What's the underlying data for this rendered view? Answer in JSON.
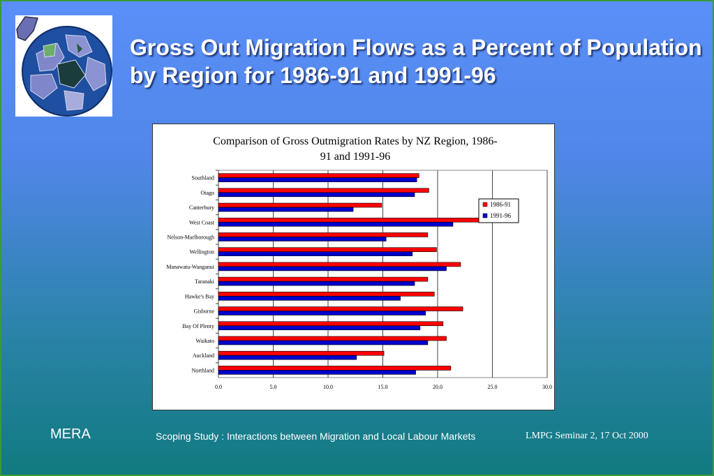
{
  "slide": {
    "title": "Gross Out Migration Flows as a Percent of Population by Region for 1986-91 and 1991-96",
    "footer_left": "MERA",
    "footer_mid": "Scoping Study : Interactions between Migration and Local Labour Markets",
    "footer_right": "LMPG Seminar 2, 17 Oct 2000"
  },
  "logo": {
    "icon": "globe-puzzle-icon"
  },
  "colors": {
    "series_1986": "#ff0000",
    "series_1991": "#0000cc"
  },
  "chart_data": {
    "type": "bar",
    "orientation": "horizontal",
    "title": "Comparison of Gross Outmigration Rates by NZ Region, 1986-91 and 1991-96",
    "title_lines": [
      "Comparison of Gross Outmigration Rates by NZ Region, 1986-",
      "91 and 1991-96"
    ],
    "categories": [
      "Southland",
      "Otago",
      "Canterbury",
      "West Coast",
      "Nelson-Marlborough",
      "Wellington",
      "Manawatu-Wanganui",
      "Taranaki",
      "Hawke's Bay",
      "Gisborne",
      "Bay Of Plenty",
      "Waikato",
      "Auckland",
      "Northland"
    ],
    "series": [
      {
        "name": "1986-91",
        "values": [
          18.3,
          19.2,
          14.9,
          24.6,
          19.1,
          19.9,
          22.1,
          19.1,
          19.7,
          22.3,
          20.5,
          20.8,
          15.1,
          21.2
        ]
      },
      {
        "name": "1991-96",
        "values": [
          18.1,
          17.9,
          12.3,
          21.4,
          15.3,
          17.7,
          20.8,
          17.9,
          16.6,
          18.9,
          18.4,
          19.1,
          12.6,
          18.0
        ]
      }
    ],
    "xlim": [
      0,
      30
    ],
    "xticks": [
      "0.0",
      "5.0",
      "10.0",
      "15.0",
      "20.0",
      "25.0",
      "30.0"
    ],
    "grid": true,
    "legend_position": "right"
  }
}
